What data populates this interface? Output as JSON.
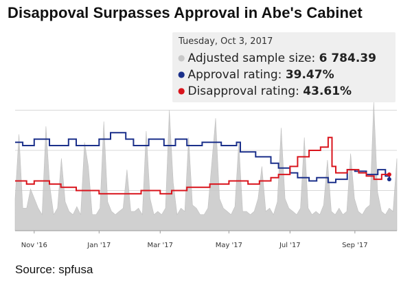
{
  "title": "Disappoval Surpasses Approval in Abe's Cabinet",
  "source": "Source: spfusa",
  "colors": {
    "approval": "#1a2f8a",
    "disapproval": "#d9141c",
    "sample": "#c8c8c8",
    "grid": "#d8d8d8"
  },
  "tooltip": {
    "date": "Tuesday, Oct 3, 2017",
    "rows": [
      {
        "label": "Adjusted sample size:",
        "value": "6 784.39",
        "dot_color": "#c8c8c8"
      },
      {
        "label": "Approval rating:",
        "value": "39.47%",
        "dot_color": "#1a2f8a"
      },
      {
        "label": "Disapproval rating:",
        "value": "43.61%",
        "dot_color": "#d9141c"
      }
    ]
  },
  "chart_data": {
    "type": "line",
    "title": "Disappoval Surpasses Approval in Abe's Cabinet",
    "xlabel": "",
    "ylabel": "",
    "xlim": [
      0,
      100
    ],
    "ylim": [
      0,
      100
    ],
    "x_ticks": [
      {
        "label": "Nov '16",
        "x": 5
      },
      {
        "label": "Jan '17",
        "x": 22
      },
      {
        "label": "Mar '17",
        "x": 38
      },
      {
        "label": "May '17",
        "x": 56
      },
      {
        "label": "Jul '17",
        "x": 72
      },
      {
        "label": "Sep '17",
        "x": 89
      }
    ],
    "series": [
      {
        "name": "Approval rating",
        "type": "line",
        "points": [
          [
            0,
            55
          ],
          [
            2,
            55
          ],
          [
            2,
            53
          ],
          [
            5,
            53
          ],
          [
            5,
            57
          ],
          [
            9,
            57
          ],
          [
            9,
            53
          ],
          [
            14,
            53
          ],
          [
            14,
            57
          ],
          [
            16,
            57
          ],
          [
            16,
            53
          ],
          [
            22,
            53
          ],
          [
            22,
            57
          ],
          [
            25,
            57
          ],
          [
            25,
            61
          ],
          [
            29,
            61
          ],
          [
            29,
            57
          ],
          [
            31,
            57
          ],
          [
            31,
            53
          ],
          [
            35,
            53
          ],
          [
            35,
            57
          ],
          [
            39,
            57
          ],
          [
            39,
            53
          ],
          [
            42,
            53
          ],
          [
            42,
            57
          ],
          [
            45,
            57
          ],
          [
            45,
            53
          ],
          [
            49,
            53
          ],
          [
            49,
            55
          ],
          [
            54,
            55
          ],
          [
            54,
            53
          ],
          [
            58,
            53
          ],
          [
            58,
            55
          ],
          [
            59,
            55
          ],
          [
            59,
            49
          ],
          [
            63,
            49
          ],
          [
            63,
            46
          ],
          [
            67,
            46
          ],
          [
            67,
            42
          ],
          [
            69,
            42
          ],
          [
            69,
            39
          ],
          [
            72,
            39
          ],
          [
            72,
            36
          ],
          [
            74,
            36
          ],
          [
            74,
            33
          ],
          [
            77,
            33
          ],
          [
            77,
            31
          ],
          [
            79,
            31
          ],
          [
            79,
            33
          ],
          [
            82,
            33
          ],
          [
            82,
            30
          ],
          [
            84,
            30
          ],
          [
            84,
            32
          ],
          [
            87,
            32
          ],
          [
            87,
            38
          ],
          [
            89,
            38
          ],
          [
            89,
            37
          ],
          [
            92,
            37
          ],
          [
            92,
            35
          ],
          [
            95,
            35
          ],
          [
            95,
            38
          ],
          [
            97,
            38
          ],
          [
            97,
            34
          ],
          [
            98,
            34
          ],
          [
            98,
            32
          ]
        ]
      },
      {
        "name": "Disapproval rating",
        "type": "line",
        "points": [
          [
            0,
            31
          ],
          [
            3,
            31
          ],
          [
            3,
            29
          ],
          [
            5,
            29
          ],
          [
            5,
            31
          ],
          [
            9,
            31
          ],
          [
            9,
            29
          ],
          [
            12,
            29
          ],
          [
            12,
            27
          ],
          [
            16,
            27
          ],
          [
            16,
            25
          ],
          [
            22,
            25
          ],
          [
            22,
            23
          ],
          [
            33,
            23
          ],
          [
            33,
            25
          ],
          [
            38,
            25
          ],
          [
            38,
            23
          ],
          [
            41,
            23
          ],
          [
            41,
            25
          ],
          [
            45,
            25
          ],
          [
            45,
            27
          ],
          [
            51,
            27
          ],
          [
            51,
            29
          ],
          [
            56,
            29
          ],
          [
            56,
            31
          ],
          [
            61,
            31
          ],
          [
            61,
            29
          ],
          [
            64,
            29
          ],
          [
            64,
            31
          ],
          [
            67,
            31
          ],
          [
            67,
            33
          ],
          [
            69,
            33
          ],
          [
            69,
            35
          ],
          [
            72,
            35
          ],
          [
            72,
            40
          ],
          [
            74,
            40
          ],
          [
            74,
            46
          ],
          [
            77,
            46
          ],
          [
            77,
            50
          ],
          [
            80,
            50
          ],
          [
            80,
            52
          ],
          [
            82,
            52
          ],
          [
            82,
            58
          ],
          [
            83,
            58
          ],
          [
            83,
            40
          ],
          [
            84,
            40
          ],
          [
            84,
            36
          ],
          [
            87,
            36
          ],
          [
            87,
            38
          ],
          [
            90,
            38
          ],
          [
            90,
            36
          ],
          [
            92,
            36
          ],
          [
            92,
            34
          ],
          [
            94,
            34
          ],
          [
            94,
            32
          ],
          [
            96,
            32
          ],
          [
            96,
            35
          ],
          [
            98,
            35
          ]
        ]
      },
      {
        "name": "Adjusted sample size",
        "type": "area",
        "values": [
          20,
          60,
          14,
          14,
          26,
          20,
          14,
          10,
          65,
          28,
          10,
          14,
          45,
          18,
          12,
          10,
          15,
          10,
          55,
          40,
          10,
          10,
          14,
          68,
          18,
          12,
          10,
          12,
          14,
          38,
          12,
          12,
          14,
          10,
          62,
          20,
          10,
          12,
          10,
          14,
          75,
          30,
          10,
          14,
          12,
          58,
          16,
          14,
          10,
          10,
          14,
          42,
          70,
          20,
          14,
          12,
          10,
          15,
          55,
          12,
          12,
          10,
          12,
          20,
          40,
          12,
          14,
          10,
          18,
          64,
          20,
          14,
          12,
          10,
          14,
          58,
          14,
          10,
          12,
          10,
          16,
          44,
          12,
          10,
          14,
          10,
          12,
          48,
          20,
          12,
          10,
          14,
          16,
          80,
          24,
          12,
          10,
          14,
          12,
          45
        ]
      }
    ]
  }
}
